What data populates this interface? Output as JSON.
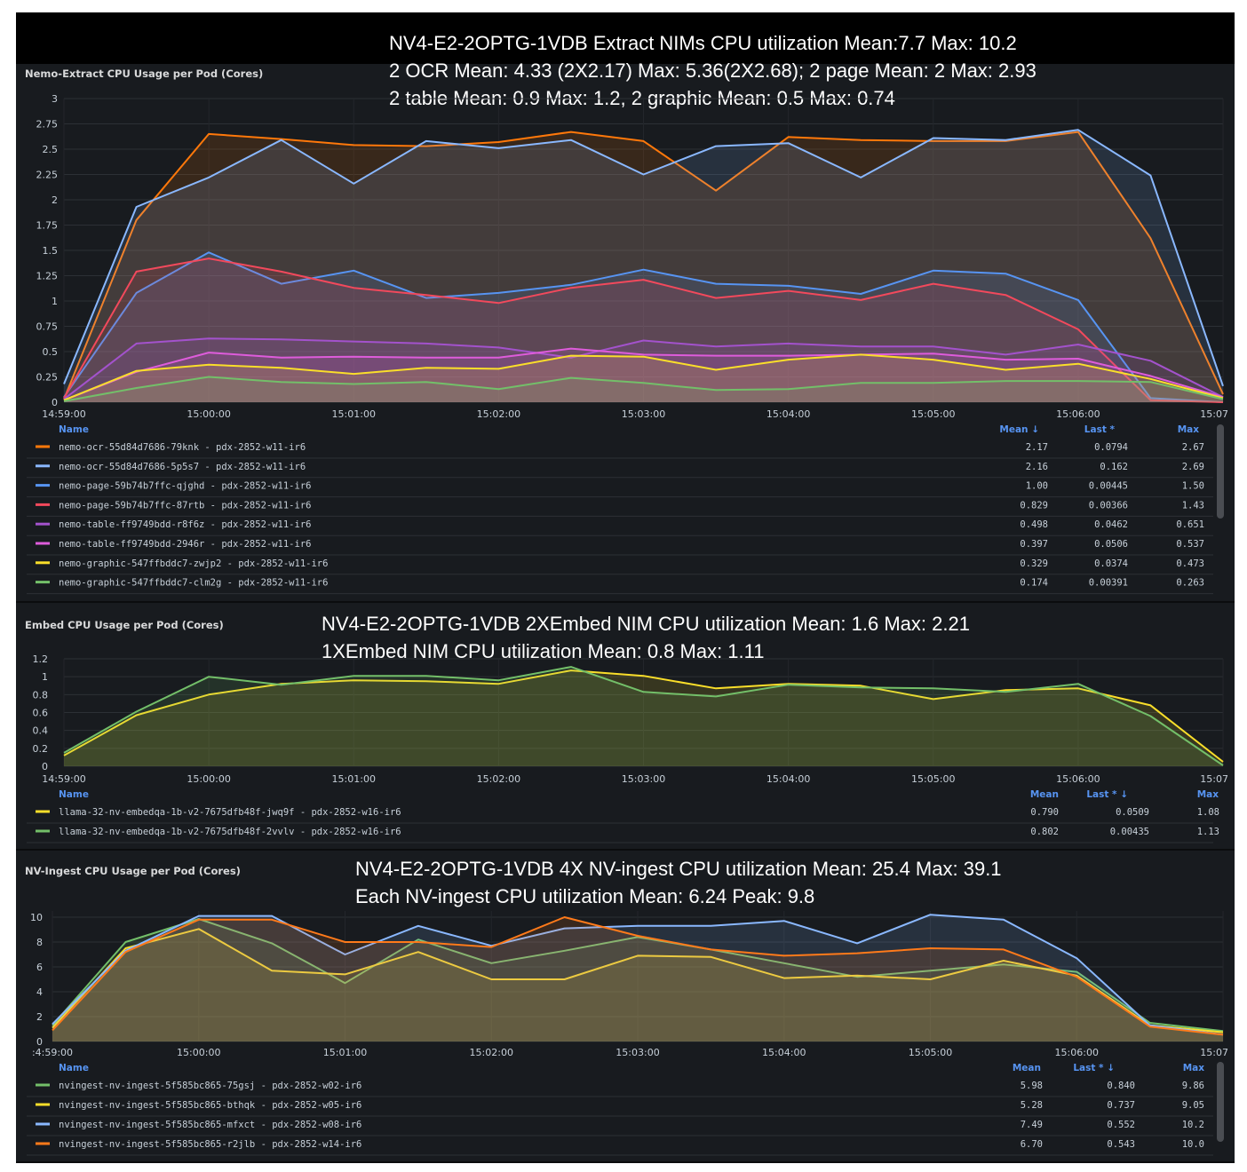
{
  "colors": {
    "orange": "#ff780a",
    "light_blue": "#8ab8ff",
    "blue": "#5794f2",
    "red": "#f2495c",
    "purple": "#a352cc",
    "magenta": "#de5cdb",
    "yellow": "#fade2a",
    "green": "#73bf69",
    "dark_orange": "#ff7a1a"
  },
  "chart_data": [
    {
      "type": "area",
      "title": "Nemo-Extract CPU Usage per Pod (Cores)",
      "annotation": [
        "NV4-E2-2OPTG-1VDB Extract NIMs CPU utilization Mean:7.7  Max: 10.2",
        "2 OCR Mean: 4.33 (2X2.17) Max: 5.36(2X2.68);  2 page Mean: 2 Max: 2.93",
        "2 table Mean: 0.9 Max: 1.2, 2 graphic Mean: 0.5 Max: 0.74"
      ],
      "x_ticks": [
        "14:59:00",
        "15:00:00",
        "15:01:00",
        "15:02:00",
        "15:03:00",
        "15:04:00",
        "15:05:00",
        "15:06:00",
        "15:07"
      ],
      "y_ticks": [
        "0",
        "0.25",
        "0.5",
        "0.75",
        "1",
        "1.25",
        "1.5",
        "1.75",
        "2",
        "2.25",
        "2.5",
        "2.75",
        "3"
      ],
      "ylim": [
        0,
        3
      ],
      "xlim": [
        0,
        8
      ],
      "x": [
        0,
        0.5,
        1,
        1.5,
        2,
        2.5,
        3,
        3.5,
        4,
        4.5,
        5,
        5.5,
        6,
        6.5,
        7,
        7.5,
        8
      ],
      "legend_headers": [
        "Name",
        "Mean ↓",
        "Last *",
        "Max"
      ],
      "series": [
        {
          "name": "nemo-ocr-55d84d7686-79knk - pdx-2852-w11-ir6",
          "color": "#ff780a",
          "mean": "2.17",
          "last": "0.0794",
          "max": "2.67",
          "values": [
            0.03,
            1.8,
            2.65,
            2.6,
            2.54,
            2.53,
            2.57,
            2.67,
            2.58,
            2.09,
            2.62,
            2.59,
            2.58,
            2.58,
            2.67,
            1.62,
            0.08
          ]
        },
        {
          "name": "nemo-ocr-55d84d7686-5p5s7 - pdx-2852-w11-ir6",
          "color": "#8ab8ff",
          "mean": "2.16",
          "last": "0.162",
          "max": "2.69",
          "values": [
            0.18,
            1.93,
            2.22,
            2.59,
            2.16,
            2.58,
            2.51,
            2.59,
            2.25,
            2.53,
            2.56,
            2.22,
            2.61,
            2.59,
            2.69,
            2.24,
            0.16
          ]
        },
        {
          "name": "nemo-page-59b74b7ffc-qjghd - pdx-2852-w11-ir6",
          "color": "#5794f2",
          "mean": "1.00",
          "last": "0.00445",
          "max": "1.50",
          "values": [
            0.05,
            1.08,
            1.48,
            1.17,
            1.3,
            1.03,
            1.08,
            1.16,
            1.31,
            1.17,
            1.15,
            1.07,
            1.3,
            1.27,
            1.01,
            0.04,
            0.0
          ]
        },
        {
          "name": "nemo-page-59b74b7ffc-87rtb - pdx-2852-w11-ir6",
          "color": "#f2495c",
          "mean": "0.829",
          "last": "0.00366",
          "max": "1.43",
          "values": [
            0.04,
            1.29,
            1.42,
            1.29,
            1.13,
            1.06,
            0.98,
            1.13,
            1.21,
            1.03,
            1.1,
            1.01,
            1.17,
            1.06,
            0.72,
            0.02,
            0.0
          ]
        },
        {
          "name": "nemo-table-ff9749bdd-r8f6z - pdx-2852-w11-ir6",
          "color": "#a352cc",
          "mean": "0.498",
          "last": "0.0462",
          "max": "0.651",
          "values": [
            0.03,
            0.58,
            0.63,
            0.62,
            0.6,
            0.58,
            0.54,
            0.44,
            0.61,
            0.55,
            0.58,
            0.55,
            0.55,
            0.47,
            0.57,
            0.41,
            0.05
          ]
        },
        {
          "name": "nemo-table-ff9749bdd-2946r - pdx-2852-w11-ir6",
          "color": "#de5cdb",
          "mean": "0.397",
          "last": "0.0506",
          "max": "0.537",
          "values": [
            0.02,
            0.3,
            0.49,
            0.44,
            0.45,
            0.44,
            0.44,
            0.53,
            0.47,
            0.46,
            0.46,
            0.47,
            0.48,
            0.42,
            0.43,
            0.26,
            0.05
          ]
        },
        {
          "name": "nemo-graphic-547ffbddc7-zwjp2 - pdx-2852-w11-ir6",
          "color": "#fade2a",
          "mean": "0.329",
          "last": "0.0374",
          "max": "0.473",
          "values": [
            0.02,
            0.31,
            0.37,
            0.34,
            0.28,
            0.34,
            0.33,
            0.46,
            0.45,
            0.32,
            0.42,
            0.47,
            0.42,
            0.32,
            0.38,
            0.23,
            0.04
          ]
        },
        {
          "name": "nemo-graphic-547ffbddc7-clm2g - pdx-2852-w11-ir6",
          "color": "#73bf69",
          "mean": "0.174",
          "last": "0.00391",
          "max": "0.263",
          "values": [
            0.01,
            0.14,
            0.25,
            0.2,
            0.18,
            0.2,
            0.13,
            0.24,
            0.19,
            0.12,
            0.13,
            0.19,
            0.19,
            0.21,
            0.21,
            0.2,
            0.03
          ]
        }
      ]
    },
    {
      "type": "area",
      "title": "Embed CPU Usage per Pod (Cores)",
      "annotation": [
        "NV4-E2-2OPTG-1VDB 2XEmbed NIM CPU utilization Mean: 1.6  Max: 2.21",
        "1XEmbed NIM CPU utilization Mean: 0.8  Max: 1.11"
      ],
      "x_ticks": [
        "14:59:00",
        "15:00:00",
        "15:01:00",
        "15:02:00",
        "15:03:00",
        "15:04:00",
        "15:05:00",
        "15:06:00",
        "15:07"
      ],
      "y_ticks": [
        "0",
        "0.2",
        "0.4",
        "0.6",
        "0.8",
        "1",
        "1.2"
      ],
      "ylim": [
        0,
        1.2
      ],
      "xlim": [
        0,
        8
      ],
      "x": [
        0,
        0.5,
        1,
        1.5,
        2,
        2.5,
        3,
        3.5,
        4,
        4.5,
        5,
        5.5,
        6,
        6.5,
        7,
        7.5,
        8
      ],
      "legend_headers": [
        "Name",
        "Mean",
        "Last * ↓",
        "Max"
      ],
      "series": [
        {
          "name": "llama-32-nv-embedqa-1b-v2-7675dfb48f-jwq9f - pdx-2852-w16-ir6",
          "color": "#fade2a",
          "mean": "0.790",
          "last": "0.0509",
          "max": "1.08",
          "values": [
            0.12,
            0.57,
            0.8,
            0.92,
            0.96,
            0.95,
            0.92,
            1.07,
            1.01,
            0.87,
            0.92,
            0.9,
            0.75,
            0.85,
            0.87,
            0.68,
            0.05
          ]
        },
        {
          "name": "llama-32-nv-embedqa-1b-v2-7675dfb48f-2vvlv - pdx-2852-w16-ir6",
          "color": "#73bf69",
          "mean": "0.802",
          "last": "0.00435",
          "max": "1.13",
          "values": [
            0.15,
            0.61,
            1.0,
            0.91,
            1.01,
            1.01,
            0.96,
            1.11,
            0.83,
            0.78,
            0.91,
            0.88,
            0.87,
            0.83,
            0.92,
            0.56,
            0.01
          ]
        }
      ]
    },
    {
      "type": "area",
      "title": "NV-Ingest CPU Usage per Pod (Cores)",
      "annotation": [
        "NV4-E2-2OPTG-1VDB 4X NV-ingest CPU utilization Mean: 25.4  Max: 39.1",
        "Each NV-ingest CPU utilization  Mean: 6.24 Peak: 9.8"
      ],
      "x_ticks": [
        ":4:59:00",
        "15:00:00",
        "15:01:00",
        "15:02:00",
        "15:03:00",
        "15:04:00",
        "15:05:00",
        "15:06:00",
        "15:07"
      ],
      "y_ticks": [
        "0",
        "2",
        "4",
        "6",
        "8",
        "10"
      ],
      "ylim": [
        0,
        10.5
      ],
      "xlim": [
        0,
        8
      ],
      "x": [
        0,
        0.5,
        1,
        1.5,
        2,
        2.5,
        3,
        3.5,
        4,
        4.5,
        5,
        5.5,
        6,
        6.5,
        7,
        7.5,
        8
      ],
      "legend_headers": [
        "Name",
        "Mean",
        "Last * ↓",
        "Max"
      ],
      "series": [
        {
          "name": "nvingest-nv-ingest-5f585bc865-75gsj - pdx-2852-w02-ir6",
          "color": "#73bf69",
          "mean": "5.98",
          "last": "0.840",
          "max": "9.86",
          "values": [
            1.3,
            8.0,
            9.86,
            7.9,
            4.7,
            8.2,
            6.3,
            7.3,
            8.4,
            7.4,
            6.3,
            5.2,
            5.7,
            6.2,
            5.6,
            1.5,
            0.84
          ]
        },
        {
          "name": "nvingest-nv-ingest-5f585bc865-bthqk - pdx-2852-w05-ir6",
          "color": "#fade2a",
          "mean": "5.28",
          "last": "0.737",
          "max": "9.05",
          "values": [
            1.1,
            7.5,
            9.05,
            5.7,
            5.4,
            7.2,
            5.0,
            5.0,
            6.9,
            6.8,
            5.1,
            5.3,
            5.0,
            6.5,
            5.3,
            1.3,
            0.74
          ]
        },
        {
          "name": "nvingest-nv-ingest-5f585bc865-mfxct - pdx-2852-w08-ir6",
          "color": "#8ab8ff",
          "mean": "7.49",
          "last": "0.552",
          "max": "10.2",
          "values": [
            1.4,
            7.3,
            10.1,
            10.1,
            7.0,
            9.3,
            7.7,
            9.1,
            9.3,
            9.3,
            9.7,
            7.9,
            10.2,
            9.8,
            6.7,
            1.3,
            0.55
          ]
        },
        {
          "name": "nvingest-nv-ingest-5f585bc865-r2jlb - pdx-2852-w14-ir6",
          "color": "#ff7a1a",
          "mean": "6.70",
          "last": "0.543",
          "max": "10.0",
          "values": [
            0.9,
            7.2,
            9.8,
            9.8,
            8.0,
            8.0,
            7.6,
            10.0,
            8.5,
            7.4,
            6.9,
            7.1,
            7.5,
            7.4,
            5.2,
            1.2,
            0.54
          ]
        }
      ]
    }
  ]
}
